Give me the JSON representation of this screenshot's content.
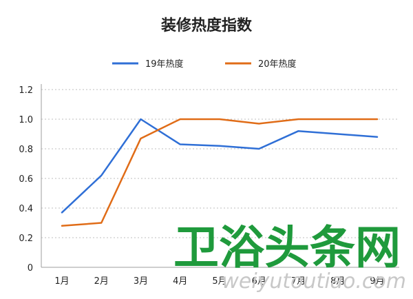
{
  "chart_data": {
    "type": "line",
    "title": "装修热度指数",
    "categories": [
      "1月",
      "2月",
      "3月",
      "4月",
      "5月",
      "6月",
      "7月",
      "8月",
      "9月"
    ],
    "series": [
      {
        "name": "19年热度",
        "color": "#2f6fd6",
        "values": [
          0.37,
          0.62,
          1.0,
          0.83,
          0.82,
          0.8,
          0.92,
          0.9,
          0.88
        ]
      },
      {
        "name": "20年热度",
        "color": "#e06c17",
        "values": [
          0.28,
          0.3,
          0.87,
          1.0,
          1.0,
          0.97,
          1.0,
          1.0,
          1.0
        ]
      }
    ],
    "ylim": [
      0,
      1.2
    ],
    "yticks": [
      "0",
      "0.2",
      "0.4",
      "0.6",
      "0.8",
      "1.0",
      "1.2"
    ],
    "grid": true,
    "legend_position": "top"
  },
  "watermark": {
    "text_cn": "卫浴头条网",
    "text_en": "weiyutoutiao.com",
    "color": "#1f9a3c"
  }
}
